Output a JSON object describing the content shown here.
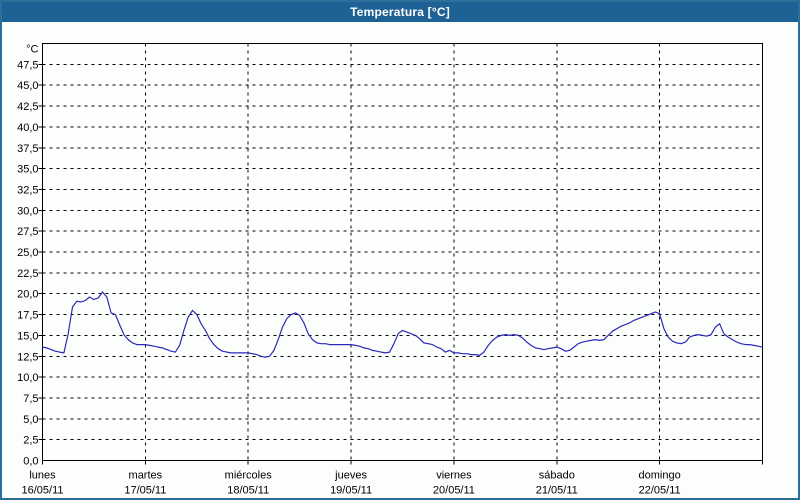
{
  "window": {
    "title": "Temperatura [°C]"
  },
  "colors": {
    "titlebar_bg": "#1e6295",
    "titlebar_text": "#ffffff",
    "frame_border": "#2c6f9b",
    "background": "#fcfefb",
    "grid": "#000000",
    "axis": "#000000",
    "series_line": "#2a2ab9",
    "label_text": "#000000"
  },
  "chart_data": {
    "type": "line",
    "title": "Temperatura [°C]",
    "legend": "none",
    "y_axis": {
      "unit_label": "°C",
      "min": 0,
      "max": 50,
      "tick_step": 2.5,
      "tick_labels_top_to_bottom": [
        "47,5",
        "45,0",
        "42,5",
        "40,0",
        "37,5",
        "35,0",
        "32,5",
        "30,0",
        "27,5",
        "25,0",
        "22,5",
        "20,0",
        "17,5",
        "15,0",
        "12,5",
        "10,0",
        "7,5",
        "5,0",
        "2,5",
        "0,0"
      ],
      "gridlines": "dashed"
    },
    "x_axis": {
      "days": [
        {
          "name": "lunes",
          "date": "16/05/11"
        },
        {
          "name": "martes",
          "date": "17/05/11"
        },
        {
          "name": "miércoles",
          "date": "18/05/11"
        },
        {
          "name": "jueves",
          "date": "19/05/11"
        },
        {
          "name": "viernes",
          "date": "20/05/11"
        },
        {
          "name": "sábado",
          "date": "21/05/11"
        },
        {
          "name": "domingo",
          "date": "22/05/11"
        }
      ],
      "points_per_day": 24,
      "gridlines": "dashed vertical at day boundaries"
    },
    "series": [
      {
        "name": "Temperatura",
        "color": "#2a2ab9",
        "values_hourly": [
          13.6,
          13.5,
          13.3,
          13.1,
          13.0,
          12.9,
          15.2,
          18.4,
          19.1,
          19.0,
          19.2,
          19.6,
          19.3,
          19.5,
          20.2,
          19.6,
          17.7,
          17.5,
          16.3,
          15.1,
          14.5,
          14.1,
          13.9,
          13.9,
          13.9,
          13.8,
          13.7,
          13.6,
          13.5,
          13.3,
          13.1,
          13.0,
          13.8,
          15.6,
          17.2,
          18.0,
          17.5,
          16.4,
          15.6,
          14.6,
          13.9,
          13.4,
          13.1,
          13.0,
          12.9,
          12.9,
          12.9,
          12.9,
          12.9,
          12.8,
          12.7,
          12.5,
          12.4,
          12.5,
          13.2,
          14.5,
          16.0,
          17.0,
          17.5,
          17.7,
          17.4,
          16.5,
          15.2,
          14.5,
          14.1,
          14.0,
          14.0,
          13.9,
          13.9,
          13.9,
          13.9,
          13.9,
          13.9,
          13.8,
          13.7,
          13.5,
          13.4,
          13.2,
          13.1,
          13.0,
          12.9,
          13.0,
          14.0,
          15.2,
          15.6,
          15.4,
          15.2,
          15.0,
          14.6,
          14.1,
          14.0,
          13.9,
          13.6,
          13.4,
          13.0,
          13.2,
          12.9,
          12.9,
          12.8,
          12.8,
          12.7,
          12.7,
          12.6,
          13.0,
          13.8,
          14.4,
          14.8,
          15.0,
          15.1,
          15.0,
          15.1,
          15.0,
          14.7,
          14.2,
          13.8,
          13.5,
          13.4,
          13.3,
          13.4,
          13.5,
          13.6,
          13.4,
          13.1,
          13.2,
          13.6,
          14.0,
          14.2,
          14.3,
          14.4,
          14.5,
          14.4,
          14.5,
          15.0,
          15.5,
          15.8,
          16.1,
          16.3,
          16.5,
          16.8,
          17.0,
          17.2,
          17.4,
          17.6,
          17.8,
          17.6,
          15.8,
          14.8,
          14.3,
          14.1,
          14.0,
          14.2,
          14.8,
          15.0,
          15.1,
          15.0,
          14.9,
          15.1,
          16.0,
          16.4,
          15.2,
          14.8,
          14.5,
          14.2,
          14.0,
          13.9,
          13.9,
          13.8,
          13.7,
          13.6
        ]
      }
    ]
  }
}
